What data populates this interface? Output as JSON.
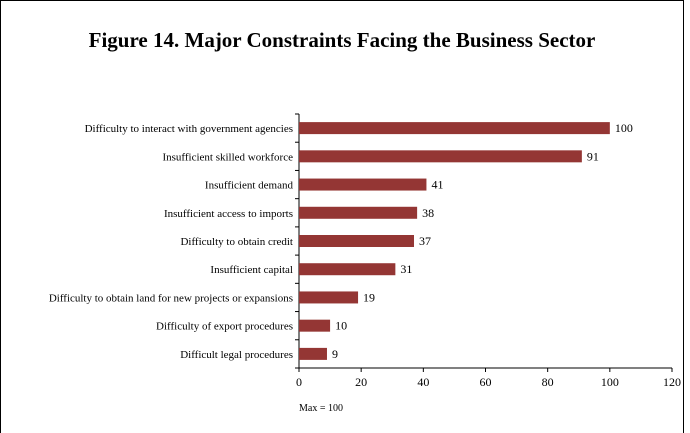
{
  "chart_data": {
    "type": "bar",
    "orientation": "horizontal",
    "title": "Figure 14. Major Constraints Facing the Business Sector",
    "categories": [
      "Difficulty to interact with government agencies",
      "Insufficient skilled workforce",
      "Insufficient demand",
      "Insufficient access to imports",
      "Difficulty to obtain credit",
      "Insufficient capital",
      "Difficulty to obtain land for new projects or expansions",
      "Difficulty of export procedures",
      "Difficult legal procedures"
    ],
    "values": [
      100,
      91,
      41,
      38,
      37,
      31,
      19,
      10,
      9
    ],
    "xlim": [
      0,
      120
    ],
    "xticks": [
      0,
      20,
      40,
      60,
      80,
      100,
      120
    ],
    "bar_color": "#943634",
    "grid": false,
    "note": "Max = 100"
  }
}
